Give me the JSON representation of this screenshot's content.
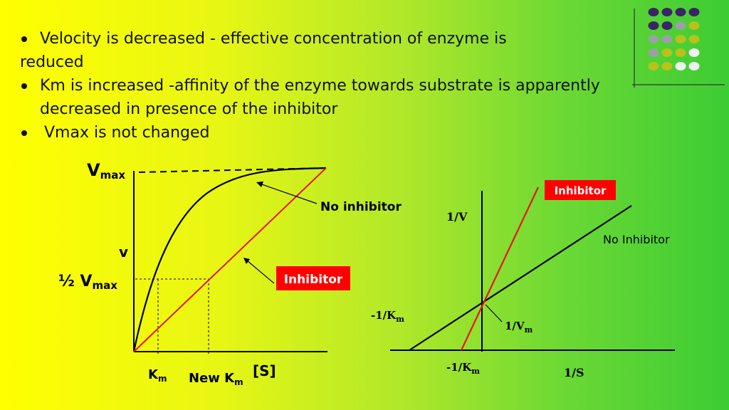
{
  "bullets": [
    {
      "line1": "Velocity is decreased - effective concentration of enzyme is",
      "line2": "reduced"
    },
    {
      "line1": "Km is increased -affinity of the enzyme towards substrate is apparently",
      "line2": "decreased in presence of the inhibitor"
    },
    {
      "line1": "Vmax is not changed"
    }
  ],
  "left_graph": {
    "vmax_main": "V",
    "vmax_sub": "max",
    "v_label": "v",
    "half_main": "½ V",
    "half_sub": "max",
    "km_main": "K",
    "km_sub": "m",
    "newkm_main": "New K",
    "newkm_sub": "m",
    "s_label": "[S]",
    "no_inhibitor": "No inhibitor",
    "inhibitor": "Inhibitor"
  },
  "right_graph": {
    "inhibitor": "Inhibitor",
    "no_inhibitor": "No Inhibitor",
    "y_label": "1/V",
    "x_label": "1/S",
    "neg_km_left_main": "-1/K",
    "neg_km_left_sub": "m",
    "neg_km_bottom_main": "-1/K",
    "neg_km_bottom_sub": "m",
    "inv_vm_main": "1/V",
    "inv_vm_sub": "m"
  },
  "colors": {
    "red_box": "#ff0000",
    "curve": "#000000",
    "inhibitor_line": "#e81414",
    "deco_purple": "#3b2466",
    "deco_gray": "#9aa0a6",
    "deco_olive": "#b8c21a",
    "deco_white": "#eef0f2"
  }
}
